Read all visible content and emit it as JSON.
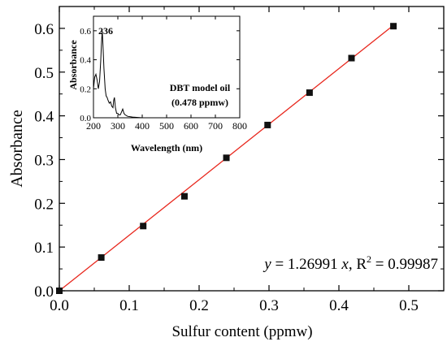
{
  "chart_data": [
    {
      "type": "scatter",
      "xlabel": "Sulfur content (ppmw)",
      "ylabel": "Absorbance",
      "xlim": [
        0.0,
        0.55
      ],
      "ylim": [
        0.0,
        0.65
      ],
      "xticks": [
        "0.0",
        "0.1",
        "0.2",
        "0.3",
        "0.4",
        "0.5"
      ],
      "yticks": [
        "0.0",
        "0.1",
        "0.2",
        "0.3",
        "0.4",
        "0.5",
        "0.6"
      ],
      "xtick_values": [
        0.0,
        0.1,
        0.2,
        0.3,
        0.4,
        0.5
      ],
      "ytick_values": [
        0.0,
        0.1,
        0.2,
        0.3,
        0.4,
        0.5,
        0.6
      ],
      "points": [
        {
          "x": 0.0,
          "y": 0.0
        },
        {
          "x": 0.06,
          "y": 0.076
        },
        {
          "x": 0.12,
          "y": 0.148
        },
        {
          "x": 0.179,
          "y": 0.216
        },
        {
          "x": 0.239,
          "y": 0.304
        },
        {
          "x": 0.298,
          "y": 0.379
        },
        {
          "x": 0.358,
          "y": 0.453
        },
        {
          "x": 0.418,
          "y": 0.532
        },
        {
          "x": 0.478,
          "y": 0.605
        }
      ],
      "fit": {
        "slope": 1.26991,
        "x_range": [
          0.0,
          0.478
        ],
        "equation_y": "y",
        "equation_eq": " = 1.26991 ",
        "equation_x": "x",
        "equation_r": ", R",
        "equation_r_sup": "2",
        "equation_r_val": " = 0.99987",
        "color": "#e8261c"
      },
      "marker_color": "#111111",
      "grid": false
    },
    {
      "type": "line",
      "xlabel": "Wavelength (nm)",
      "ylabel": "Absorbance",
      "xlim": [
        200,
        800
      ],
      "ylim": [
        0.0,
        0.7
      ],
      "xticks": [
        "200",
        "300",
        "400",
        "500",
        "600",
        "700",
        "800"
      ],
      "yticks": [
        "0.0",
        "0.2",
        "0.4",
        "0.6"
      ],
      "xtick_values": [
        200,
        300,
        400,
        500,
        600,
        700,
        800
      ],
      "ytick_values": [
        0.0,
        0.2,
        0.4,
        0.6
      ],
      "x": [
        200,
        205,
        210,
        215,
        220,
        225,
        230,
        233,
        236,
        239,
        243,
        248,
        252,
        256,
        260,
        265,
        270,
        275,
        280,
        283,
        286,
        290,
        295,
        300,
        305,
        310,
        315,
        320,
        325,
        330,
        340,
        360,
        400,
        500,
        600,
        700,
        800
      ],
      "y": [
        0.2,
        0.28,
        0.3,
        0.26,
        0.2,
        0.25,
        0.4,
        0.52,
        0.6,
        0.5,
        0.34,
        0.2,
        0.15,
        0.14,
        0.12,
        0.1,
        0.11,
        0.08,
        0.07,
        0.12,
        0.14,
        0.07,
        0.03,
        0.03,
        0.02,
        0.02,
        0.04,
        0.06,
        0.03,
        0.02,
        0.01,
        0.005,
        0.0,
        0.0,
        0.0,
        0.0,
        0.0
      ],
      "annotations": {
        "peak_label": "236",
        "sample_label": "DBT model oil",
        "concentration_label": "(0.478 ppmw)"
      },
      "grid": false
    }
  ]
}
